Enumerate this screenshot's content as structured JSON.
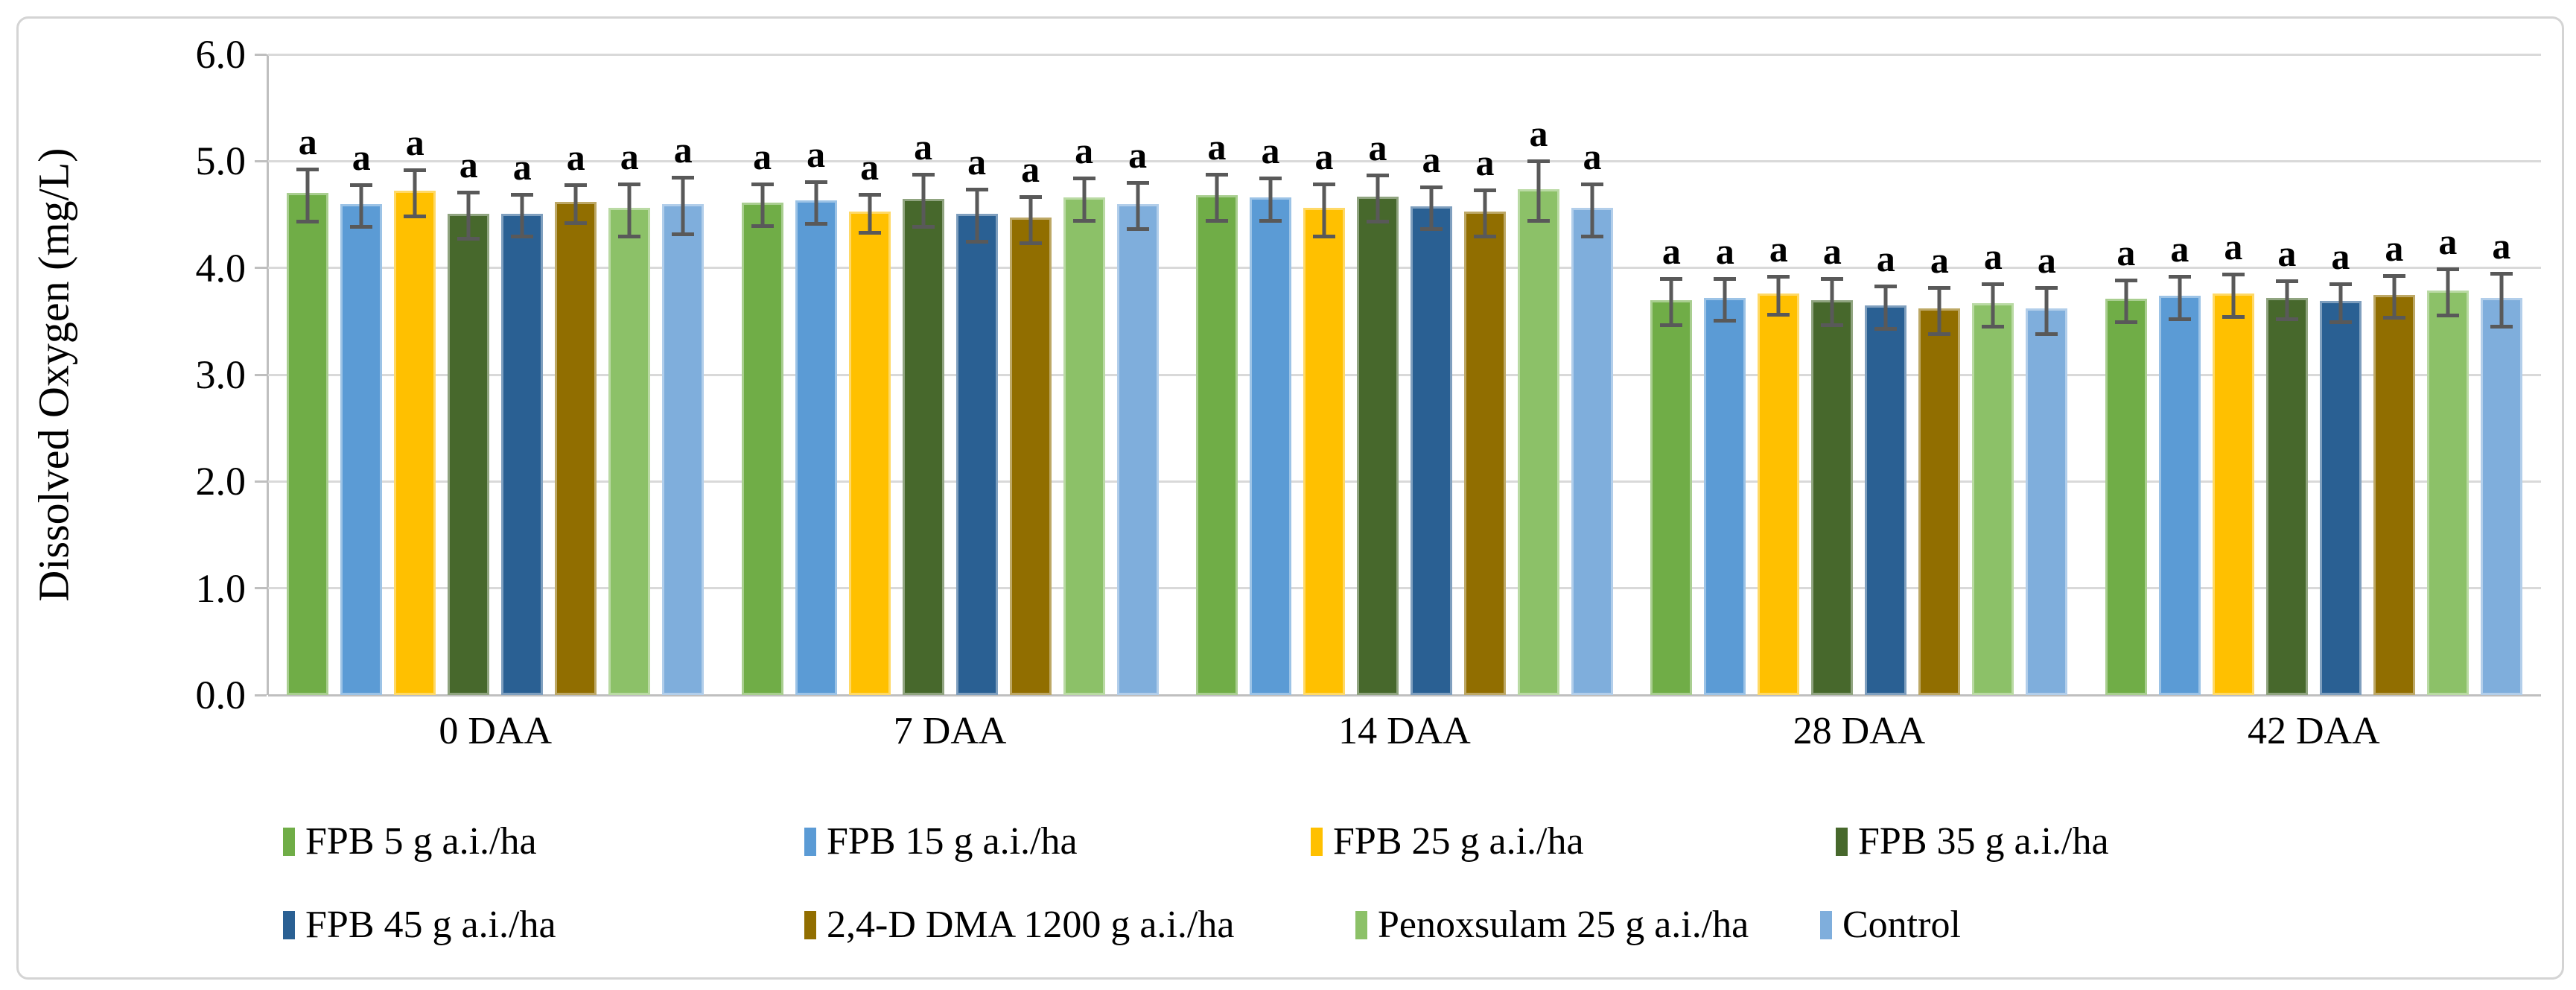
{
  "figure": {
    "y_axis_title": "Dissolved Oxygen (mg/L)"
  },
  "chart_data": {
    "type": "bar",
    "title": "",
    "xlabel": "",
    "ylabel": "Dissolved Oxygen (mg/L)",
    "ylim": [
      0,
      6
    ],
    "yticks": [
      "0.0",
      "1.0",
      "2.0",
      "3.0",
      "4.0",
      "5.0",
      "6.0"
    ],
    "grid": true,
    "legend_position": "bottom",
    "error_bars": true,
    "significance_letter": "a",
    "categories": [
      "0 DAA",
      "7 DAA",
      "14 DAA",
      "28 DAA",
      "42 DAA"
    ],
    "series": [
      {
        "name": "FPB 5 g a.i./ha",
        "color": "#70AD47",
        "values": [
          4.7,
          4.61,
          4.68,
          3.7,
          3.71
        ],
        "errors": [
          0.25,
          0.2,
          0.22,
          0.22,
          0.2
        ]
      },
      {
        "name": "FPB 15 g a.i./ha",
        "color": "#5B9BD5",
        "values": [
          4.6,
          4.63,
          4.66,
          3.72,
          3.74
        ],
        "errors": [
          0.2,
          0.2,
          0.2,
          0.2,
          0.2
        ]
      },
      {
        "name": "FPB 25 g a.i./ha",
        "color": "#FFC000",
        "values": [
          4.72,
          4.53,
          4.56,
          3.76,
          3.76
        ],
        "errors": [
          0.22,
          0.18,
          0.25,
          0.18,
          0.2
        ]
      },
      {
        "name": "FPB 35 g a.i./ha",
        "color": "#47682C",
        "values": [
          4.51,
          4.65,
          4.67,
          3.7,
          3.72
        ],
        "errors": [
          0.22,
          0.25,
          0.22,
          0.22,
          0.18
        ]
      },
      {
        "name": "FPB 45 g a.i./ha",
        "color": "#2A6093",
        "values": [
          4.51,
          4.51,
          4.58,
          3.65,
          3.69
        ],
        "errors": [
          0.2,
          0.25,
          0.2,
          0.2,
          0.18
        ]
      },
      {
        "name": "2,4-D DMA 1200 g a.i./ha",
        "color": "#916E00",
        "values": [
          4.62,
          4.47,
          4.53,
          3.62,
          3.75
        ],
        "errors": [
          0.18,
          0.22,
          0.22,
          0.22,
          0.2
        ]
      },
      {
        "name": "Penoxsulam 25 g a.i./ha",
        "color": "#8CC168",
        "values": [
          4.56,
          4.66,
          4.74,
          3.67,
          3.79
        ],
        "errors": [
          0.25,
          0.2,
          0.28,
          0.2,
          0.22
        ]
      },
      {
        "name": "Control",
        "color": "#7FAEDC",
        "values": [
          4.6,
          4.6,
          4.56,
          3.62,
          3.72
        ],
        "errors": [
          0.27,
          0.22,
          0.25,
          0.22,
          0.25
        ]
      }
    ],
    "colors": {
      "gridline": "#D9D9D9",
      "axis_line": "#BFBFBF",
      "error_bar": "#595959",
      "figure_border": "#D4D4D4"
    }
  }
}
